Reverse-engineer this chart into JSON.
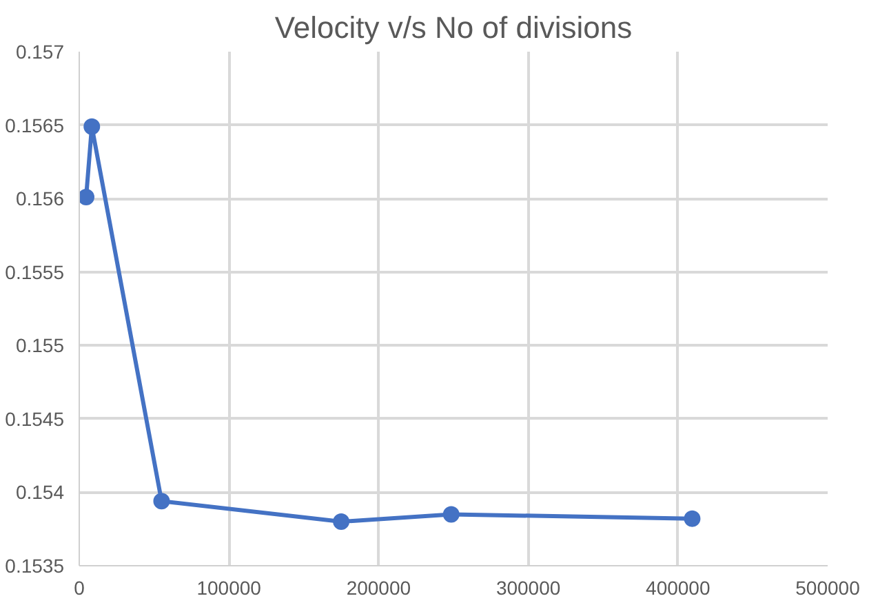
{
  "chart_data": {
    "type": "line",
    "title": "Velocity v/s No of divisions",
    "x": [
      4600,
      8400,
      55000,
      175000,
      248500,
      409500
    ],
    "series": [
      {
        "color": "#4472c4",
        "values": [
          0.15601,
          0.15649,
          0.15394,
          0.1538,
          0.15385,
          0.15382
        ]
      }
    ],
    "xlim": [
      0,
      500000
    ],
    "xticks": [
      0,
      100000,
      200000,
      300000,
      400000,
      500000
    ],
    "ylim": [
      0.1535,
      0.157
    ],
    "yticks": [
      0.1535,
      0.154,
      0.1545,
      0.155,
      0.1555,
      0.156,
      0.1565,
      0.157
    ],
    "grid": true,
    "marker": "circle",
    "line_style": "solid"
  }
}
